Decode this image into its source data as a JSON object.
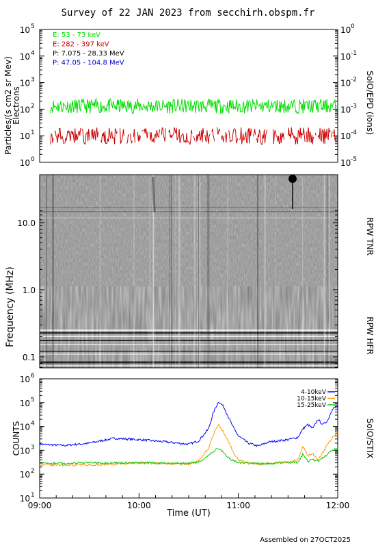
{
  "title": "Survey of 22 JAN 2023 from secchirh.obspm.fr",
  "footer": "Assembled on 27OCT2025",
  "colors": {
    "green": "#00dd00",
    "red": "#cc0000",
    "black": "#000000",
    "blue": "#0000cc",
    "orange": "#ff9900",
    "stix_blue": "#0000ff",
    "stix_green": "#00cc00"
  },
  "chart_data": [
    {
      "type": "line",
      "panel": "SolO/EPD",
      "ylabel": "Particles/(s cm2 sr Mev)",
      "ylabel2": "Electrons",
      "right_label": "SolO/EPD (ions)",
      "yscale": "log",
      "ylim": [
        1,
        100000
      ],
      "y_ticks": [
        "10",
        "10",
        "10",
        "10",
        "10",
        "10"
      ],
      "y_tick_exps": [
        "0",
        "1",
        "2",
        "3",
        "4",
        "5"
      ],
      "y2lim": [
        1e-05,
        1
      ],
      "y2_ticks": [
        "10",
        "10",
        "10",
        "10",
        "10",
        "10"
      ],
      "y2_tick_exps": [
        "-5",
        "-4",
        "-3",
        "-2",
        "-1",
        "0"
      ],
      "legend": [
        {
          "label": "E: 53 - 73 keV",
          "color": "#00dd00"
        },
        {
          "label": "E: 282 - 397 keV",
          "color": "#cc0000"
        },
        {
          "label": "P: 7.075 - 28.33 MeV",
          "color": "#000000"
        },
        {
          "label": "P: 47.05 - 104.8 MeV",
          "color": "#0000cc"
        }
      ],
      "series": [
        {
          "name": "E: 53 - 73 keV",
          "typical_value": 130,
          "range": [
            50,
            300
          ]
        },
        {
          "name": "E: 282 - 397 keV",
          "typical_value": 8,
          "range": [
            4,
            25
          ]
        }
      ]
    },
    {
      "type": "heatmap",
      "panel": "RPW",
      "ylabel": "Frequency (MHz)",
      "yscale": "log",
      "y_ticks": [
        "0.1",
        "1.0",
        "10.0"
      ],
      "right_labels": [
        "RPW TNR",
        "RPW HFR"
      ]
    },
    {
      "type": "line",
      "panel": "SolO/STIX",
      "ylabel": "COUNTS",
      "right_label": "SolO/STIX",
      "xlabel": "Time (UT)",
      "x_ticks": [
        "09:00",
        "10:00",
        "11:00",
        "12:00"
      ],
      "yscale": "log",
      "ylim": [
        10,
        1000000
      ],
      "y_ticks": [
        "10",
        "10",
        "10",
        "10",
        "10",
        "10"
      ],
      "y_tick_exps": [
        "1",
        "2",
        "3",
        "4",
        "5",
        "6"
      ],
      "x": [
        9.0,
        9.25,
        9.5,
        9.75,
        10.0,
        10.25,
        10.5,
        10.6,
        10.7,
        10.75,
        10.8,
        10.85,
        10.9,
        10.95,
        11.0,
        11.1,
        11.2,
        11.3,
        11.4,
        11.5,
        11.6,
        11.65,
        11.7,
        11.75,
        11.8,
        11.85,
        11.9,
        11.95,
        12.0
      ],
      "series": [
        {
          "name": "4-10keV",
          "color": "#0000ff",
          "values": [
            1800,
            1600,
            2000,
            3200,
            2800,
            2300,
            1800,
            2500,
            8000,
            40000,
            110000,
            70000,
            25000,
            9000,
            4000,
            2000,
            1500,
            2200,
            2500,
            2800,
            3500,
            8000,
            12000,
            8000,
            20000,
            12000,
            18000,
            60000,
            70000
          ]
        },
        {
          "name": "10-15keV",
          "color": "#ff9900",
          "values": [
            250,
            240,
            250,
            260,
            300,
            280,
            260,
            350,
            1200,
            5000,
            12000,
            6000,
            2500,
            800,
            400,
            300,
            260,
            280,
            300,
            320,
            400,
            1500,
            600,
            700,
            400,
            800,
            2000,
            3500,
            6000
          ]
        },
        {
          "name": "15-25keV",
          "color": "#00cc00",
          "values": [
            290,
            280,
            300,
            290,
            300,
            290,
            280,
            320,
            600,
            900,
            1200,
            800,
            500,
            350,
            300,
            290,
            280,
            280,
            300,
            320,
            300,
            700,
            350,
            400,
            350,
            500,
            700,
            1000,
            1200
          ]
        }
      ]
    }
  ]
}
